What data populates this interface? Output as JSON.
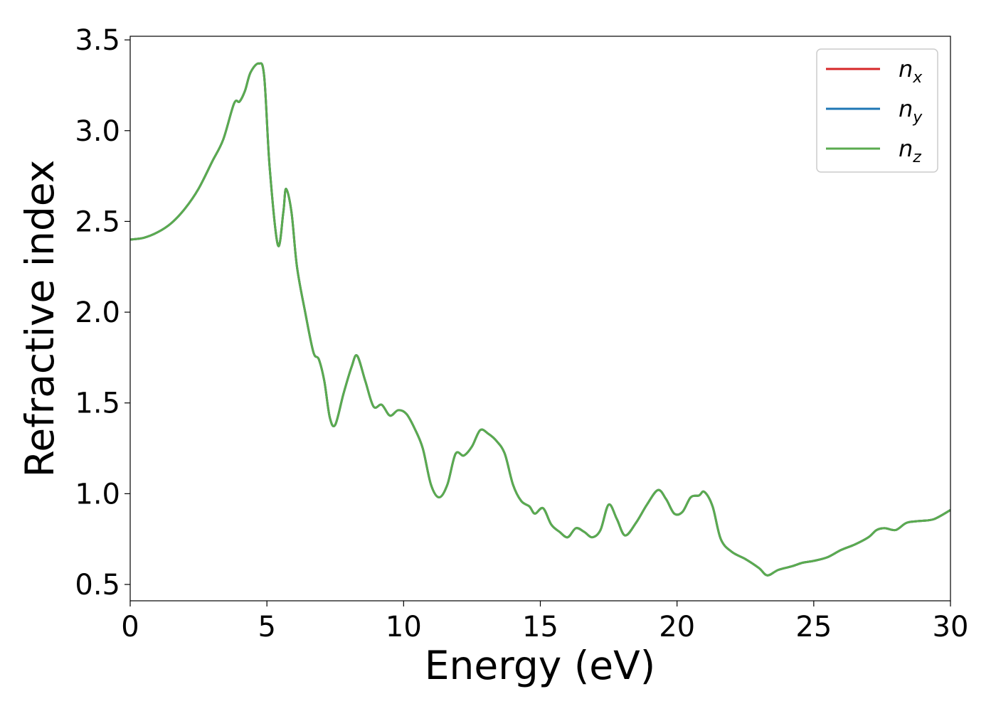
{
  "chart_data": {
    "type": "line",
    "xlabel": "Energy (eV)",
    "ylabel": "Refractive index",
    "xlim": [
      0,
      30
    ],
    "ylim": [
      0.41,
      3.52
    ],
    "xticks": [
      0,
      5,
      10,
      15,
      20,
      25,
      30
    ],
    "xtick_labels": [
      "0",
      "5",
      "10",
      "15",
      "20",
      "25",
      "30"
    ],
    "yticks": [
      0.5,
      1.0,
      1.5,
      2.0,
      2.5,
      3.0,
      3.5
    ],
    "ytick_labels": [
      "0.5",
      "1.0",
      "1.5",
      "2.0",
      "2.5",
      "3.0",
      "3.5"
    ],
    "grid": false,
    "legend_position": "top-right",
    "series": [
      {
        "name": "n",
        "subscript": "x",
        "color": "#d62728"
      },
      {
        "name": "n",
        "subscript": "y",
        "color": "#1f77b4"
      },
      {
        "name": "n",
        "subscript": "z",
        "color": "#5aab4f"
      }
    ],
    "x": [
      0,
      0.5,
      1.0,
      1.5,
      2.0,
      2.5,
      3.0,
      3.4,
      3.8,
      4.0,
      4.2,
      4.4,
      4.7,
      4.9,
      5.1,
      5.4,
      5.6,
      5.7,
      5.9,
      6.1,
      6.4,
      6.7,
      6.9,
      7.1,
      7.3,
      7.5,
      7.8,
      8.1,
      8.3,
      8.6,
      8.9,
      9.2,
      9.5,
      9.8,
      10.1,
      10.4,
      10.7,
      11.0,
      11.3,
      11.6,
      11.9,
      12.2,
      12.5,
      12.8,
      13.1,
      13.4,
      13.7,
      14.0,
      14.3,
      14.6,
      14.8,
      15.1,
      15.4,
      15.7,
      16.0,
      16.3,
      16.6,
      16.9,
      17.2,
      17.5,
      17.8,
      18.1,
      18.5,
      18.9,
      19.3,
      19.6,
      19.9,
      20.2,
      20.5,
      20.8,
      21.0,
      21.3,
      21.6,
      22.0,
      22.5,
      23.0,
      23.3,
      23.7,
      24.2,
      24.6,
      25.0,
      25.5,
      26.0,
      26.5,
      27.0,
      27.3,
      27.6,
      28.0,
      28.4,
      28.9,
      29.4,
      30.0
    ],
    "y": [
      2.4,
      2.41,
      2.44,
      2.49,
      2.57,
      2.68,
      2.83,
      2.95,
      3.15,
      3.16,
      3.22,
      3.32,
      3.37,
      3.3,
      2.8,
      2.37,
      2.55,
      2.68,
      2.55,
      2.25,
      2.0,
      1.78,
      1.74,
      1.62,
      1.42,
      1.38,
      1.55,
      1.7,
      1.76,
      1.62,
      1.48,
      1.49,
      1.43,
      1.46,
      1.44,
      1.36,
      1.25,
      1.05,
      0.98,
      1.05,
      1.22,
      1.21,
      1.26,
      1.35,
      1.33,
      1.29,
      1.22,
      1.05,
      0.96,
      0.93,
      0.89,
      0.92,
      0.83,
      0.79,
      0.76,
      0.81,
      0.79,
      0.76,
      0.8,
      0.94,
      0.86,
      0.77,
      0.84,
      0.94,
      1.02,
      0.97,
      0.89,
      0.9,
      0.98,
      0.99,
      1.01,
      0.93,
      0.75,
      0.68,
      0.64,
      0.59,
      0.55,
      0.58,
      0.6,
      0.62,
      0.63,
      0.65,
      0.69,
      0.72,
      0.76,
      0.8,
      0.81,
      0.8,
      0.84,
      0.85,
      0.86,
      0.91
    ]
  }
}
